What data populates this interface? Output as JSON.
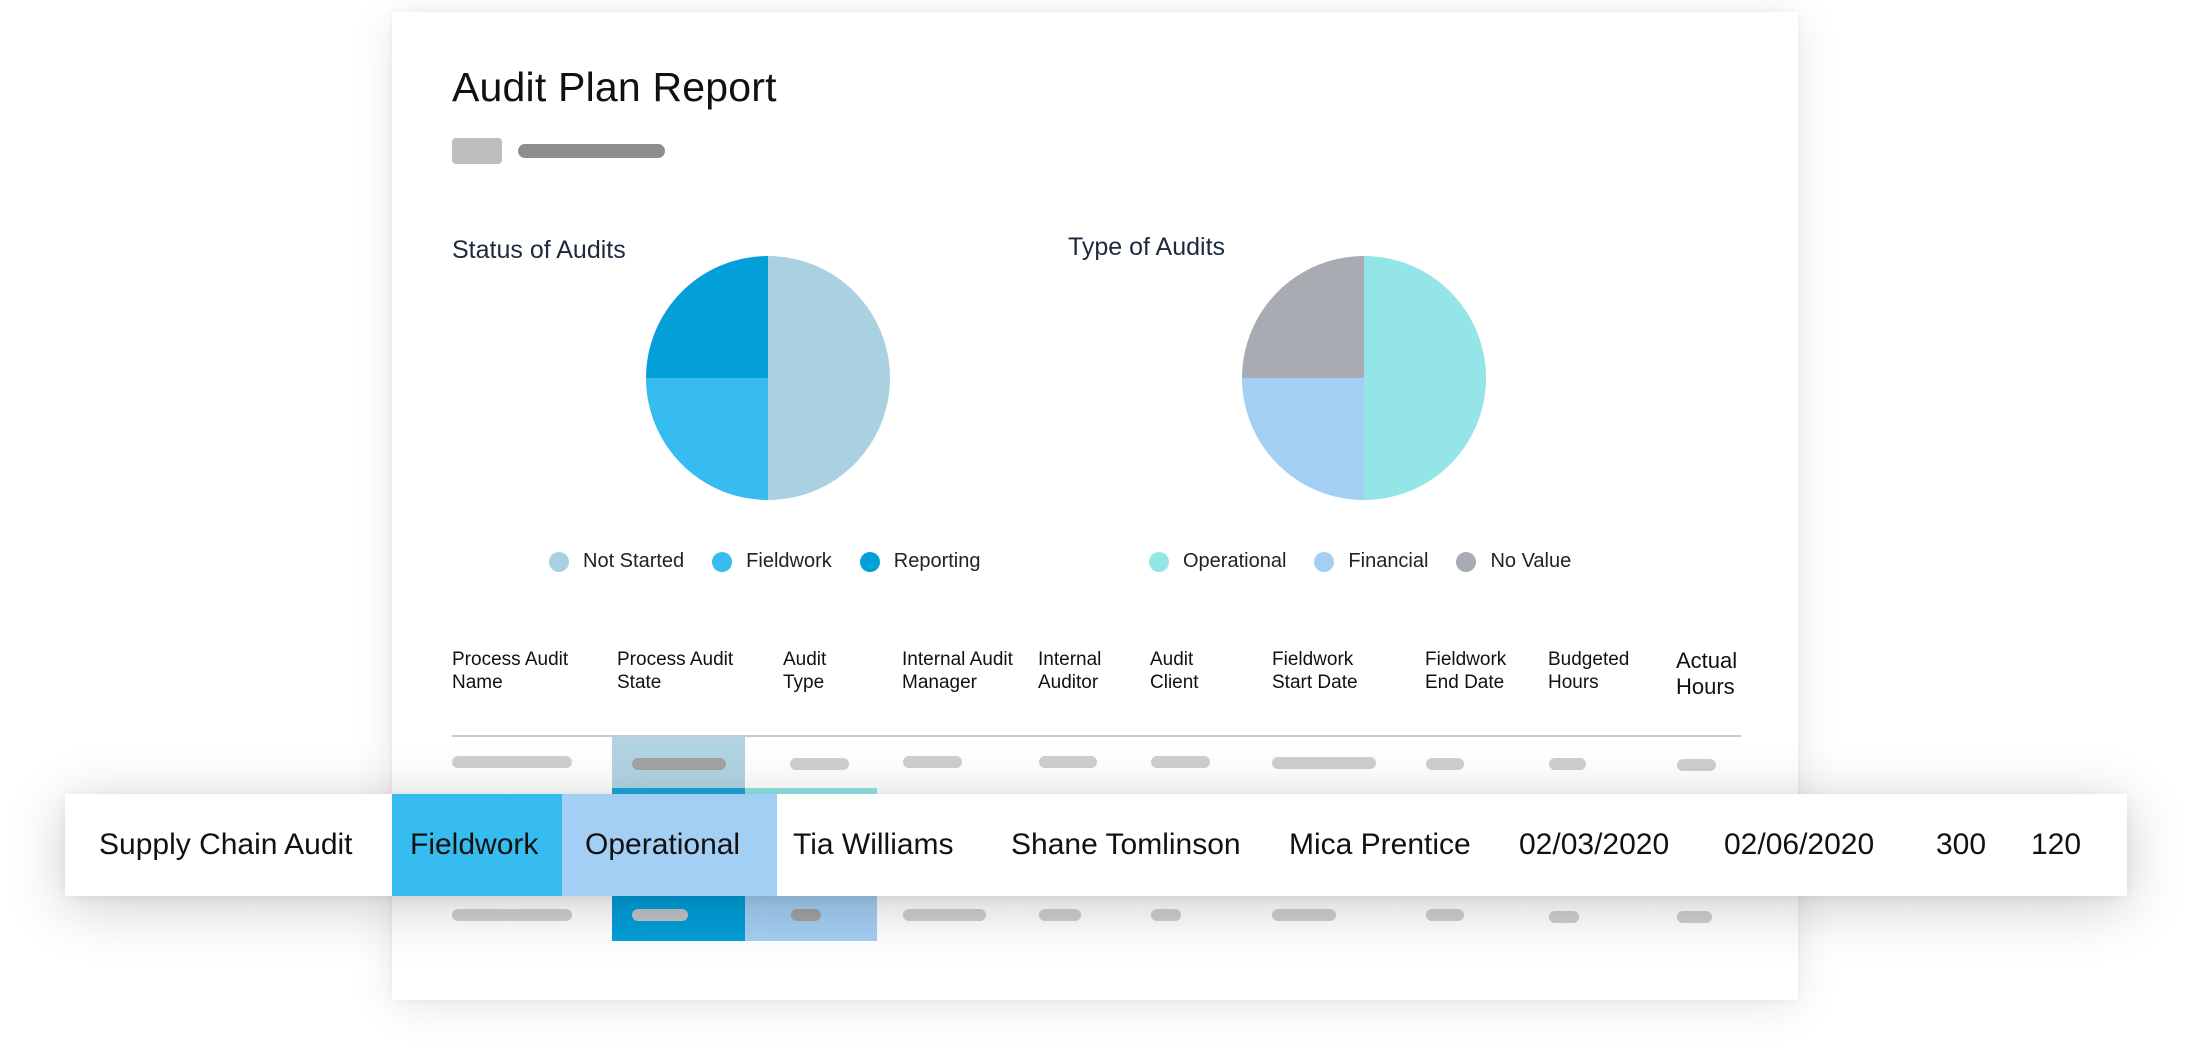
{
  "report": {
    "title": "Audit Plan Report"
  },
  "chart_data": [
    {
      "type": "pie",
      "title": "Status of Audits",
      "categories": [
        "Not Started",
        "Fieldwork",
        "Reporting"
      ],
      "values": [
        50,
        25,
        25
      ],
      "colors": [
        "#aad1e1",
        "#36bcef",
        "#029fd9"
      ]
    },
    {
      "type": "pie",
      "title": "Type of Audits",
      "categories": [
        "Operational",
        "Financial",
        "No Value"
      ],
      "values": [
        50,
        25,
        25
      ],
      "colors": [
        "#93e5e7",
        "#a4cff4",
        "#a8acb2"
      ]
    }
  ],
  "table": {
    "headers": [
      "Process Audit\nName",
      "Process Audit\nState",
      "Audit\nType",
      "Internal Audit\nManager",
      "Internal\nAuditor",
      "Audit\nClient",
      "Fieldwork\nStart Date",
      "Fieldwork\nEnd Date",
      "Budgeted\nHours",
      "Actual\nHours"
    ],
    "highlighted_row": [
      "Supply Chain Audit",
      "Fieldwork",
      "Operational",
      "Tia Williams",
      "Shane Tomlinson",
      "Mica Prentice",
      "02/03/2020",
      "02/06/2020",
      "300",
      "120"
    ],
    "highlight_colors": {
      "state": "#36bcef",
      "type": "#a4cff4"
    }
  }
}
